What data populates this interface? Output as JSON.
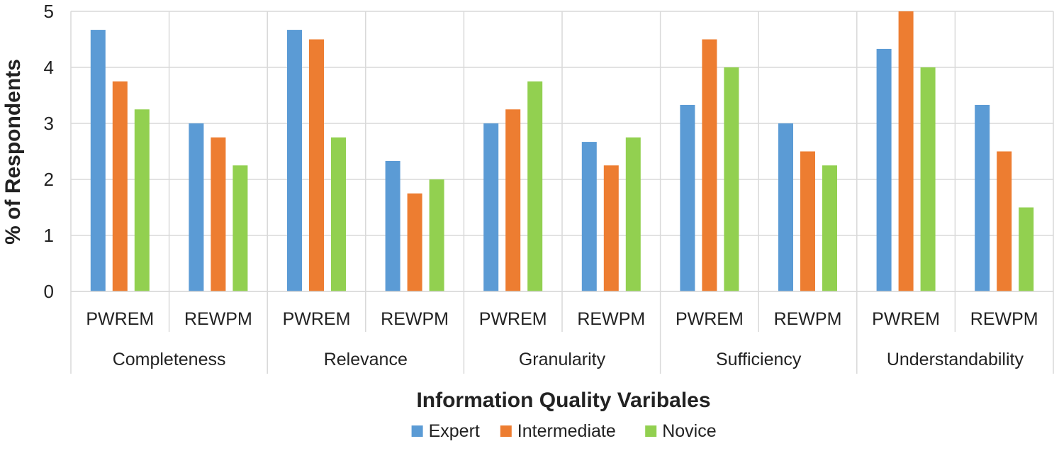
{
  "chart_data": {
    "type": "bar",
    "title": "",
    "xlabel": "Information Quality Varibales",
    "ylabel": "% of Respondents",
    "ylim": [
      0,
      5
    ],
    "yticks": [
      0,
      1,
      2,
      3,
      4,
      5
    ],
    "grid": true,
    "legend_position": "bottom",
    "groups": [
      "Completeness",
      "Relevance",
      "Granularity",
      "Sufficiency",
      "Understandability"
    ],
    "categories": [
      "PWREM",
      "REWPM",
      "PWREM",
      "REWPM",
      "PWREM",
      "REWPM",
      "PWREM",
      "REWPM",
      "PWREM",
      "REWPM"
    ],
    "series": [
      {
        "name": "Expert",
        "color": "#5b9bd5",
        "values": [
          4.67,
          3.0,
          4.67,
          2.33,
          3.0,
          2.67,
          3.33,
          3.0,
          4.33,
          3.33
        ]
      },
      {
        "name": "Intermediate",
        "color": "#ed7d31",
        "values": [
          3.75,
          2.75,
          4.5,
          1.75,
          3.25,
          2.25,
          4.5,
          2.5,
          5.0,
          2.5
        ]
      },
      {
        "name": "Novice",
        "color": "#92d050",
        "values": [
          3.25,
          2.25,
          2.75,
          2.0,
          3.75,
          2.75,
          4.0,
          2.25,
          4.0,
          1.5
        ]
      }
    ]
  }
}
